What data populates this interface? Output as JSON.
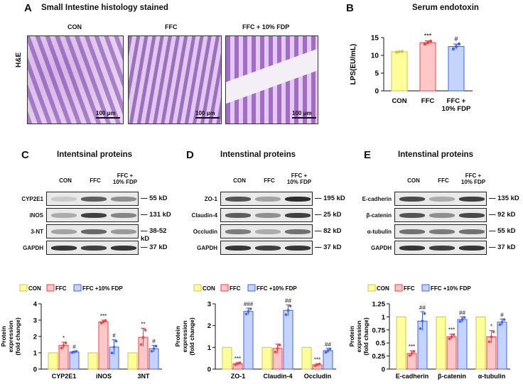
{
  "panelA": {
    "letter": "A",
    "title": "Small Intestine histology stained",
    "stain": "H&E",
    "groups": [
      "CON",
      "FFC",
      "FFC + 10% FDP"
    ],
    "scale": "100 μm"
  },
  "panelB": {
    "letter": "B",
    "title": "Serum endotoxin"
  },
  "panelC": {
    "letter": "C",
    "title": "Intentsinal proteins",
    "cols": [
      "CON",
      "FFC",
      "FFC +\n10% FDP"
    ],
    "rows": [
      "CYP2E1",
      "iNOS",
      "3-NT",
      "GAPDH"
    ],
    "mw": [
      "55 kD",
      "131 kD",
      "38-52 kD",
      "37 kD"
    ]
  },
  "panelD": {
    "letter": "D",
    "title": "Intenstinal proteins",
    "cols": [
      "CON",
      "FFC",
      "FFC +\n10% FDP"
    ],
    "rows": [
      "ZO-1",
      "Claudin-4",
      "Occludin",
      "GAPDH"
    ],
    "mw": [
      "195 kD",
      "25 kD",
      "82 kD",
      "37 kD"
    ]
  },
  "panelE": {
    "letter": "E",
    "title": "Intenstinal proteins",
    "cols": [
      "CON",
      "FFC",
      "FFC +\n10% FDP"
    ],
    "rows": [
      "E-cadherin",
      "β-catenin",
      "α-tubulin",
      "GAPDH"
    ],
    "mw": [
      "135 kD",
      "92 kD",
      "55 kD",
      "37 kD"
    ]
  },
  "colors": {
    "CON": "#ffff99",
    "FFC": "#ffc7c7",
    "FDP": "#c5d3ff",
    "CON_edge": "#c9c94a",
    "FFC_edge": "#ff3b3b",
    "FDP_edge": "#3d62ff"
  },
  "chart_data": [
    {
      "id": "B",
      "type": "bar",
      "categories": [
        "CON",
        "FFC",
        "FFC +\n10% FDP"
      ],
      "values": [
        11.0,
        13.6,
        12.5
      ],
      "errors": [
        0.2,
        0.5,
        0.7
      ],
      "points": [
        [
          10.9,
          11.0,
          11.1
        ],
        [
          13.2,
          13.6,
          14.0
        ],
        [
          11.8,
          12.5,
          13.2
        ]
      ],
      "sig": [
        "",
        "***",
        "#"
      ],
      "ylabel": "LPS(EU/mL)",
      "ylim": [
        0,
        15
      ],
      "yticks": [
        0,
        5,
        10,
        15
      ]
    },
    {
      "id": "C",
      "type": "bar",
      "categories": [
        "CYP2E1",
        "iNOS",
        "3NT"
      ],
      "series": [
        {
          "name": "CON",
          "values": [
            1.0,
            1.0,
            1.0
          ],
          "errors": [
            0,
            0,
            0
          ],
          "sig": [
            "",
            "",
            ""
          ]
        },
        {
          "name": "FFC",
          "values": [
            1.45,
            2.9,
            1.95
          ],
          "errors": [
            0.2,
            0.1,
            0.55
          ],
          "sig": [
            "*",
            "***",
            "**"
          ]
        },
        {
          "name": "FFC +10% FDP",
          "values": [
            1.05,
            1.35,
            1.25
          ],
          "errors": [
            0.05,
            0.45,
            0.2
          ],
          "sig": [
            "#",
            "#",
            "#"
          ]
        }
      ],
      "legend": [
        "CON",
        "FFC",
        "FFC +10% FDP"
      ],
      "ylabel": "Protein\nexpression\n(fold change)",
      "ylim": [
        0,
        4
      ],
      "yticks": [
        0,
        1,
        2,
        3,
        4
      ]
    },
    {
      "id": "D",
      "type": "bar",
      "categories": [
        "ZO-1",
        "Claudin-4",
        "Occludin"
      ],
      "series": [
        {
          "name": "CON",
          "values": [
            1.0,
            1.0,
            1.0
          ],
          "errors": [
            0,
            0,
            0
          ],
          "sig": [
            "",
            "",
            ""
          ]
        },
        {
          "name": "FFC",
          "values": [
            0.25,
            0.95,
            0.2
          ],
          "errors": [
            0.05,
            0.2,
            0.05
          ],
          "sig": [
            "***",
            "",
            "***"
          ]
        },
        {
          "name": "FFC +10% FDP",
          "values": [
            2.65,
            2.7,
            0.85
          ],
          "errors": [
            0.15,
            0.25,
            0.1
          ],
          "sig": [
            "###",
            "##",
            "##"
          ]
        }
      ],
      "legend": [
        "CON",
        "FFC",
        "FFC +10% FDP"
      ],
      "ylabel": "Protein\nexpression\n(fold change)",
      "ylim": [
        0,
        3
      ],
      "yticks": [
        0,
        1,
        2,
        3
      ]
    },
    {
      "id": "E",
      "type": "bar",
      "categories": [
        "E-cadherin",
        "β-catenin",
        "α-tubulin"
      ],
      "series": [
        {
          "name": "CON",
          "values": [
            1.0,
            1.0,
            1.0
          ],
          "errors": [
            0,
            0,
            0
          ],
          "sig": [
            "",
            "",
            ""
          ]
        },
        {
          "name": "FFC",
          "values": [
            0.3,
            0.62,
            0.62
          ],
          "errors": [
            0.05,
            0.05,
            0.12
          ],
          "sig": [
            "***",
            "***",
            "*"
          ]
        },
        {
          "name": "FFC +10% FDP",
          "values": [
            0.92,
            0.95,
            0.9
          ],
          "errors": [
            0.18,
            0.05,
            0.06
          ],
          "sig": [
            "##",
            "##",
            "#"
          ]
        }
      ],
      "legend": [
        "CON",
        "FFC",
        "FFC +10% FDP"
      ],
      "ylabel": "Protein\nexpression\n(fold change)",
      "ylim": [
        0,
        1.25
      ],
      "yticks": [
        0,
        0.25,
        0.5,
        0.75,
        1,
        1.25
      ]
    }
  ]
}
